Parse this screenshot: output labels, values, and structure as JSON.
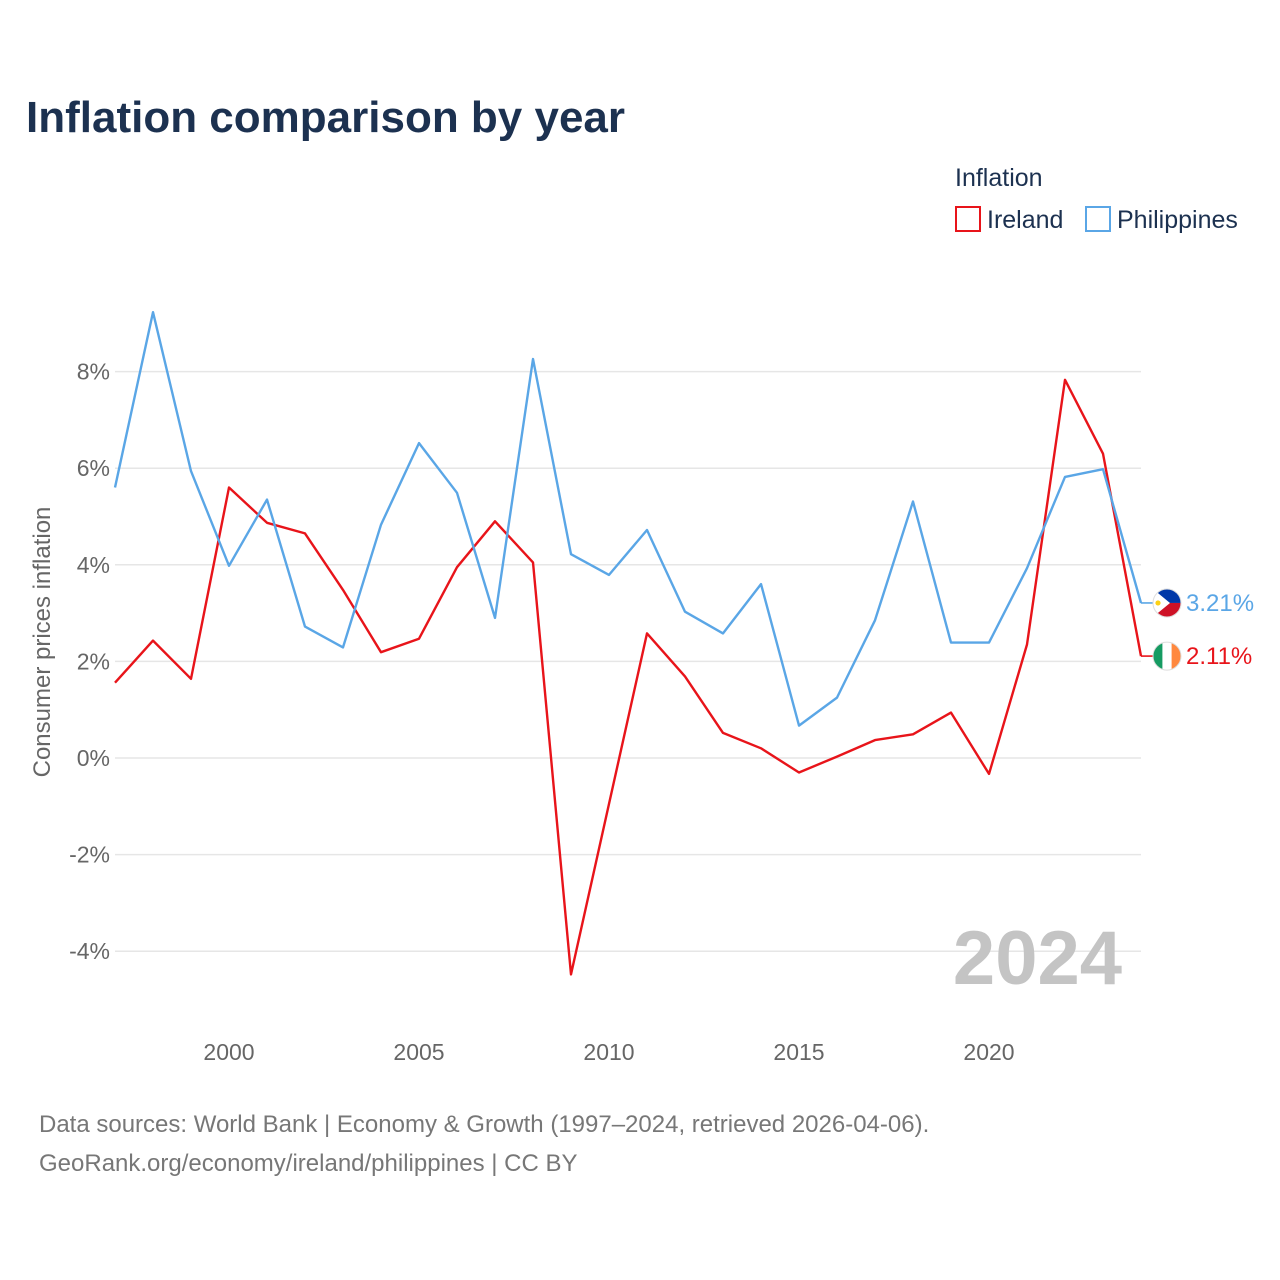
{
  "chart_data": {
    "type": "line",
    "title": "Inflation comparison by year",
    "legend_title": "Inflation",
    "legend_position": "top-right",
    "ylabel": "Consumer prices inflation",
    "xlabel": "",
    "xlim": [
      1997,
      2024
    ],
    "ylim": [
      -5,
      10
    ],
    "x_ticks": [
      2000,
      2005,
      2010,
      2015,
      2020
    ],
    "y_ticks": [
      -4,
      -2,
      0,
      2,
      4,
      6,
      8
    ],
    "y_tick_labels": [
      "-4%",
      "-2%",
      "0%",
      "2%",
      "4%",
      "6%",
      "8%"
    ],
    "x": [
      1997,
      1998,
      1999,
      2000,
      2001,
      2002,
      2003,
      2004,
      2005,
      2006,
      2007,
      2008,
      2009,
      2010,
      2011,
      2012,
      2013,
      2014,
      2015,
      2016,
      2017,
      2018,
      2019,
      2020,
      2021,
      2022,
      2023,
      2024
    ],
    "series": [
      {
        "name": "Ireland",
        "color": "#e8141a",
        "end_label": "2.11%",
        "flag": "ireland-flag",
        "values": [
          1.56,
          2.43,
          1.64,
          5.6,
          4.87,
          4.65,
          3.48,
          2.19,
          2.47,
          3.95,
          4.9,
          4.05,
          -4.48,
          -0.95,
          2.58,
          1.69,
          0.52,
          0.2,
          -0.3,
          0.03,
          0.37,
          0.49,
          0.94,
          -0.33,
          2.35,
          7.83,
          6.3,
          2.11
        ]
      },
      {
        "name": "Philippines",
        "color": "#5aa6e6",
        "end_label": "3.21%",
        "flag": "philippines-flag",
        "values": [
          5.6,
          9.23,
          5.94,
          3.98,
          5.35,
          2.72,
          2.29,
          4.83,
          6.52,
          5.49,
          2.9,
          8.26,
          4.22,
          3.79,
          4.72,
          3.03,
          2.58,
          3.6,
          0.67,
          1.25,
          2.85,
          5.31,
          2.39,
          2.39,
          3.93,
          5.82,
          5.98,
          3.21
        ]
      }
    ],
    "watermark_year": "2024"
  },
  "footer": {
    "source_line": "Data sources: World Bank | Economy & Growth (1997–2024, retrieved 2026-04-06).",
    "url_line": "GeoRank.org/economy/ireland/philippines | CC BY"
  }
}
